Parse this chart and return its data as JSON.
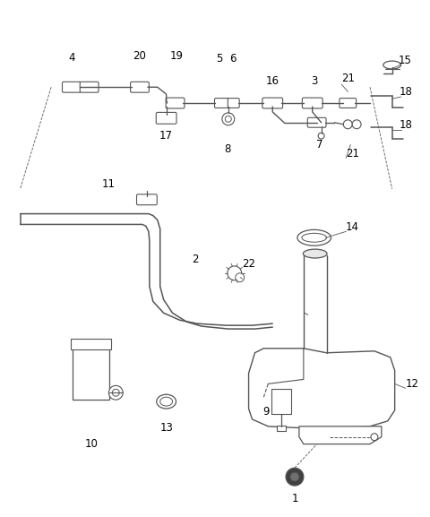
{
  "background_color": "#ffffff",
  "line_color": "#555555",
  "text_color": "#000000",
  "fig_width": 4.8,
  "fig_height": 5.77,
  "dpi": 100
}
